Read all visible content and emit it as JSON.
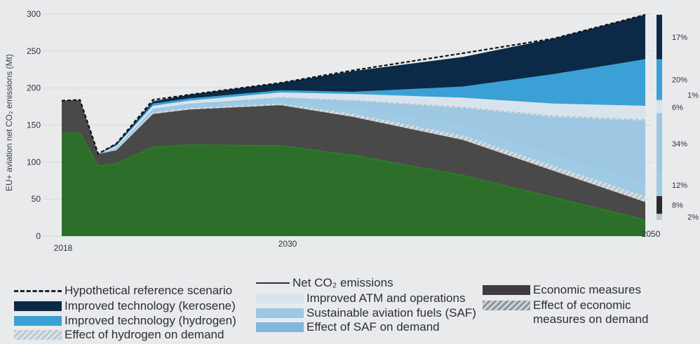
{
  "chart_data": {
    "type": "area",
    "ylabel": "EU+ aviation net CO₂ emissions (Mt)",
    "ylim": [
      0,
      300
    ],
    "yticks": [
      0,
      50,
      100,
      150,
      200,
      250,
      300
    ],
    "xticks": [
      "2018",
      "2030",
      "2050"
    ],
    "x": [
      "2018",
      "2019",
      "2020",
      "2021",
      "2023",
      "2025",
      "2030",
      "2034",
      "2040",
      "2045",
      "2050"
    ],
    "series": [
      {
        "name": "Net CO₂ emissions",
        "color": "#2c6e2a",
        "values": [
          139,
          139,
          95,
          98,
          120,
          123,
          122,
          109,
          82,
          52,
          22
        ]
      },
      {
        "name": "Economic measures",
        "color": "#4a494a",
        "values": [
          44,
          45,
          16,
          18,
          45,
          48,
          55,
          52,
          48,
          36,
          24
        ]
      },
      {
        "name": "Effect of economic measures on demand",
        "color": "#bdc6cd",
        "hatch": true,
        "values": [
          0,
          0,
          0,
          1,
          2,
          2,
          2,
          4,
          6,
          7,
          8
        ]
      },
      {
        "name": "Effect of SAF on demand",
        "color": "#9dcbe6",
        "values": [
          0,
          0,
          0,
          1,
          2,
          3,
          4,
          8,
          12,
          14,
          16
        ]
      },
      {
        "name": "Sustainable aviation fuels (SAF)",
        "color": "#9dc7e3",
        "values": [
          0,
          0,
          0,
          2,
          3,
          3,
          4,
          10,
          25,
          52,
          86
        ]
      },
      {
        "name": "Effect of hydrogen on demand",
        "color": "#c9d3dc",
        "hatch": true,
        "values": [
          0,
          0,
          0,
          0,
          0,
          0,
          1,
          1,
          2,
          2,
          2
        ]
      },
      {
        "name": "Improved ATM and operations",
        "color": "#d7e4ee",
        "values": [
          0,
          0,
          0,
          2,
          4,
          4,
          6,
          8,
          12,
          16,
          18
        ]
      },
      {
        "name": "Improved technology (hydrogen)",
        "color": "#3aa0d6",
        "values": [
          0,
          0,
          0,
          1,
          3,
          3,
          3,
          3,
          15,
          40,
          63
        ]
      },
      {
        "name": "Improved technology (kerosene)",
        "color": "#0b2a47",
        "values": [
          0,
          0,
          0,
          2,
          3,
          5,
          10,
          28,
          40,
          48,
          60
        ]
      }
    ],
    "reference_scenario": {
      "name": "Hypothetical reference scenario",
      "values": [
        183,
        184,
        111,
        125,
        184,
        191,
        207,
        224,
        247,
        267,
        299
      ]
    },
    "share_labels": [
      {
        "label": "17%",
        "color": "#0b2a47",
        "from": 239,
        "to": 299
      },
      {
        "label": "20%",
        "color": "#3aa0d6",
        "from": 184,
        "to": 239
      },
      {
        "label": "1%",
        "color": "#c9d3dc",
        "from": 182,
        "to": 184
      },
      {
        "label": "6%",
        "color": "#d7e4ee",
        "from": 166,
        "to": 182
      },
      {
        "label": "34%",
        "color": "#9dc7e3",
        "from": 84,
        "to": 166
      },
      {
        "label": "12%",
        "color": "#9dcbe6",
        "from": 54,
        "to": 84
      },
      {
        "label": "8%",
        "color": "#2b2b2e",
        "from": 30,
        "to": 54
      },
      {
        "label": "2%",
        "color": "#bdc6cd",
        "from": 22,
        "to": 30
      }
    ]
  },
  "legend": {
    "reference": "Hypothetical reference scenario",
    "net": "Net CO₂ emissions",
    "kerosene": "Improved technology (kerosene)",
    "atm": "Improved ATM and operations",
    "economic": "Economic measures",
    "hydrogen": "Improved technology (hydrogen)",
    "saf": "Sustainable aviation fuels (SAF)",
    "economic_demand": "Effect of economic measures on demand",
    "hydrogen_demand": "Effect of hydrogen on demand",
    "saf_demand": "Effect of SAF on demand"
  }
}
